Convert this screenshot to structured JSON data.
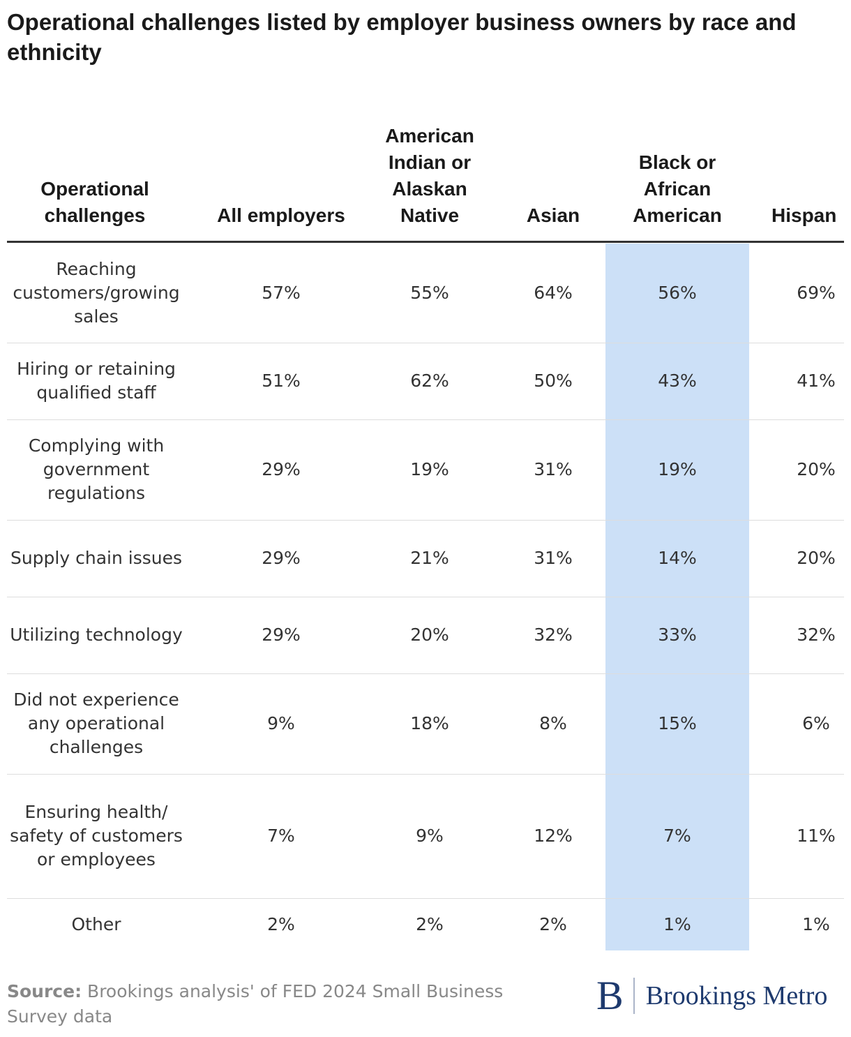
{
  "title": "Operational challenges listed by employer business owners by race and ethnicity",
  "table": {
    "header": [
      "Operational challenges",
      "All employers",
      "American Indian or Alaskan Native",
      "Asian",
      "Black or African American",
      "Hispan"
    ],
    "rows": [
      [
        "Reaching customers/growing sales",
        "57%",
        "55%",
        "64%",
        "56%",
        "69%"
      ],
      [
        "Hiring or retaining qualified staff",
        "51%",
        "62%",
        "50%",
        "43%",
        "41%"
      ],
      [
        "Complying with government regulations",
        "29%",
        "19%",
        "31%",
        "19%",
        "20%"
      ],
      [
        "Supply chain issues",
        "29%",
        "21%",
        "31%",
        "14%",
        "20%"
      ],
      [
        "Utilizing technology",
        "29%",
        "20%",
        "32%",
        "33%",
        "32%"
      ],
      [
        "Did not experience any operational challenges",
        "9%",
        "18%",
        "8%",
        "15%",
        "6%"
      ],
      [
        "Ensuring health/ safety of customers or employees",
        "7%",
        "9%",
        "12%",
        "7%",
        "11%"
      ],
      [
        "Other",
        "2%",
        "2%",
        "2%",
        "1%",
        "1%"
      ]
    ]
  },
  "footer": {
    "source_label": "Source:",
    "source_text": "Brookings analysis' of FED 2024 Small Business Survey data",
    "logo_mark": "B",
    "logo_text": "Brookings Metro"
  }
}
